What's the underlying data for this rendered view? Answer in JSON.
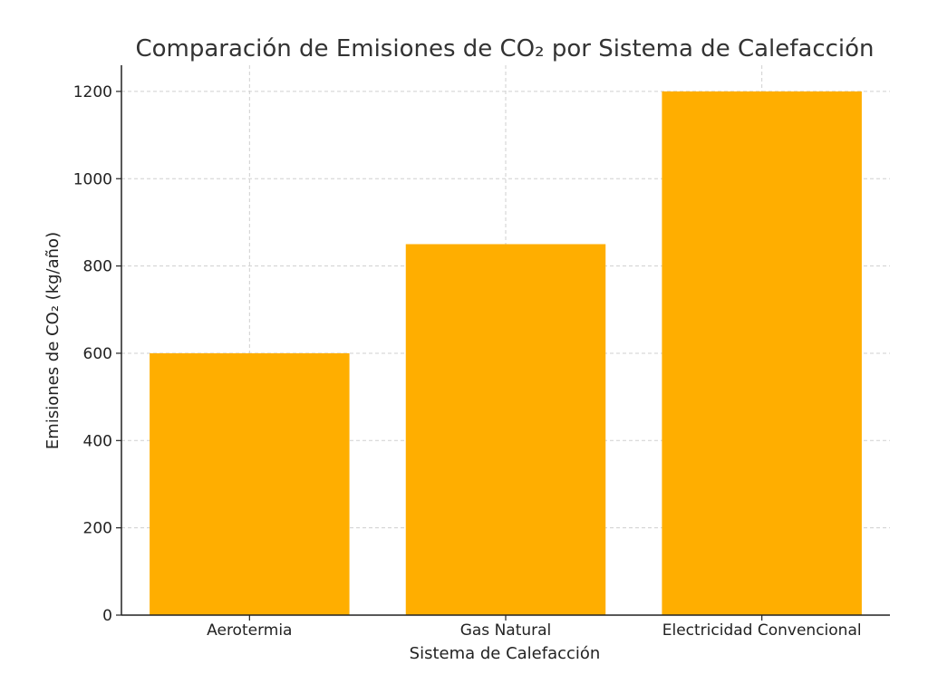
{
  "chart_data": {
    "type": "bar",
    "title": "Comparación de Emisiones de CO₂ por Sistema de Calefacción",
    "xlabel": "Sistema de Calefacción",
    "ylabel": "Emisiones de CO₂ (kg/año)",
    "categories": [
      "Aerotermia",
      "Gas Natural",
      "Electricidad Convencional"
    ],
    "values": [
      600,
      850,
      1200
    ],
    "ylim": [
      0,
      1260
    ],
    "yticks": [
      0,
      200,
      400,
      600,
      800,
      1000,
      1200
    ],
    "grid": true,
    "bar_color": "#FFAE00"
  }
}
